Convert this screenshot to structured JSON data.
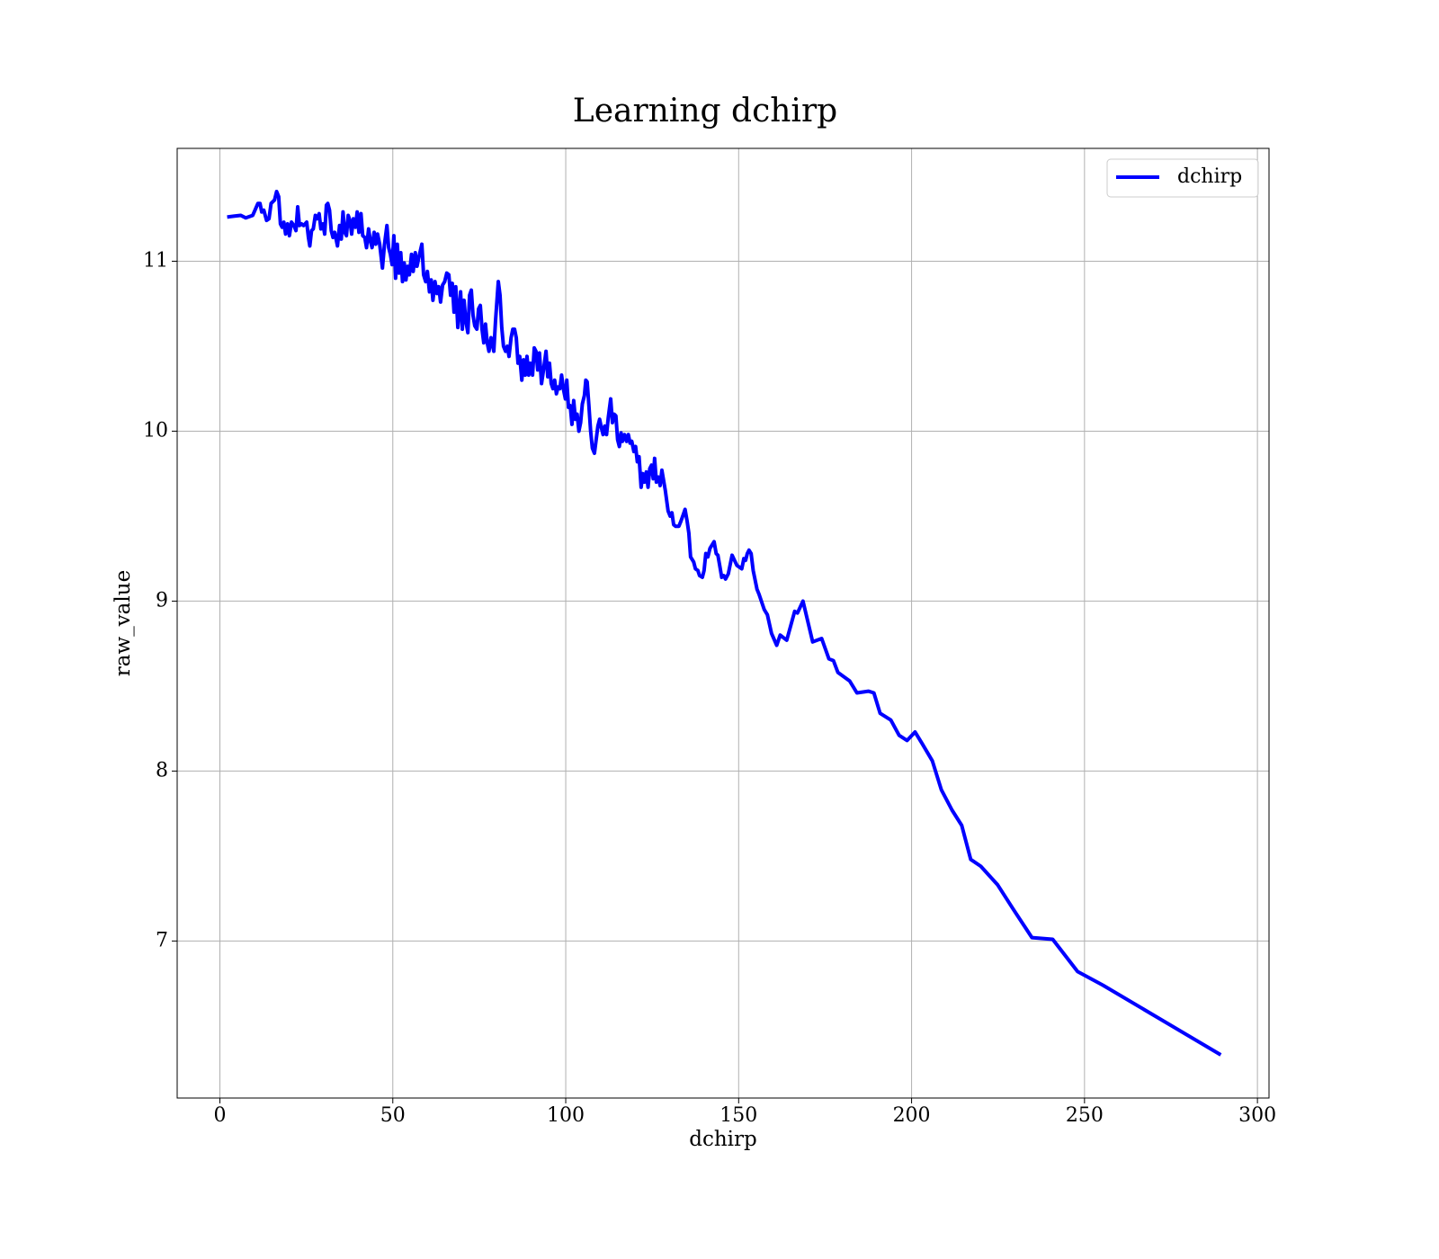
{
  "chart_data": {
    "type": "line",
    "title": "Learning dchirp",
    "xlabel": "dchirp",
    "ylabel": "raw_value",
    "x": [
      2.1,
      4,
      6,
      7.5,
      9.5,
      11,
      11.6,
      12.1,
      12.7,
      13.5,
      14.2,
      14.8,
      15.3,
      15.8,
      16.4,
      17,
      17.5,
      18,
      18.5,
      19,
      19.6,
      20.1,
      20.7,
      21.4,
      22,
      22.5,
      23,
      23.6,
      24.2,
      25.1,
      25.6,
      26,
      26.5,
      27,
      27.6,
      28.1,
      28.7,
      29.2,
      29.8,
      30.3,
      30.8,
      31.2,
      31.7,
      32.2,
      32.7,
      33.2,
      34,
      34.6,
      35.1,
      35.6,
      36.1,
      36.6,
      37.1,
      37.6,
      38.1,
      38.6,
      39.2,
      39.7,
      40.2,
      40.8,
      41.3,
      41.9,
      42.4,
      43,
      43.5,
      44,
      44.6,
      45.1,
      45.6,
      46.2,
      47,
      47.6,
      48.3,
      48.8,
      49.3,
      49.8,
      50.3,
      50.8,
      51.3,
      51.8,
      52.3,
      52.8,
      53.3,
      53.8,
      54.3,
      54.8,
      55.4,
      55.9,
      56.5,
      57,
      57.5,
      58.4,
      58.9,
      59.5,
      60,
      60.6,
      61.1,
      61.6,
      62.2,
      62.8,
      63.3,
      63.8,
      64.4,
      65,
      65.6,
      66.2,
      66.7,
      67.2,
      67.7,
      68.2,
      68.8,
      69.6,
      70.1,
      70.6,
      71.1,
      71.7,
      72.2,
      72.7,
      73.2,
      73.7,
      74.3,
      74.8,
      75.3,
      75.8,
      76.3,
      76.8,
      77.3,
      77.8,
      78.4,
      79.2,
      79.7,
      80.5,
      81,
      81.5,
      82,
      82.6,
      83.1,
      83.6,
      84.2,
      84.7,
      85.2,
      85.7,
      86.2,
      86.7,
      87.3,
      87.8,
      88.3,
      88.8,
      89.3,
      89.8,
      90.4,
      90.9,
      91.4,
      91.9,
      92.4,
      93,
      93.5,
      94.3,
      94.8,
      95.3,
      95.8,
      96.3,
      96.8,
      97.3,
      97.8,
      98.3,
      98.8,
      99.4,
      99.9,
      100.3,
      100.8,
      101.3,
      101.8,
      102.3,
      102.8,
      103.3,
      103.8,
      104.3,
      104.8,
      105.4,
      105.8,
      106.2,
      106.7,
      107.2,
      107.7,
      108.3,
      108.8,
      109.3,
      109.8,
      110.3,
      110.8,
      111.3,
      111.8,
      112.3,
      113,
      113.5,
      114,
      114.5,
      115,
      115.5,
      116,
      116.4,
      117,
      117.6,
      118.1,
      118.6,
      119.1,
      119.7,
      120.2,
      120.7,
      121.2,
      121.8,
      122.3,
      122.8,
      123.3,
      123.8,
      124.3,
      124.8,
      125.3,
      125.7,
      126.2,
      126.8,
      127.3,
      127.8,
      128.3,
      128.8,
      129.6,
      130.2,
      130.7,
      131.2,
      131.8,
      132.7,
      133.3,
      134,
      134.5,
      135.1,
      135.6,
      136.1,
      137,
      137.5,
      138.2,
      138.7,
      139.5,
      140,
      140.5,
      141.1,
      141.7,
      142.9,
      143.5,
      144,
      144.6,
      145.1,
      145.7,
      146.2,
      147,
      147.6,
      148.1,
      148.8,
      149.5,
      150.9,
      151.5,
      152,
      152.5,
      153,
      153.6,
      154.2,
      155.3,
      155.9,
      157.4,
      158.3,
      159.5,
      161,
      162,
      163.9,
      166.2,
      167,
      168.6,
      171.4,
      174,
      176.1,
      177.4,
      178.7,
      182.1,
      184.2,
      187.5,
      189.1,
      190.9,
      194,
      196.4,
      198.7,
      201,
      203.1,
      206,
      208.6,
      211.7,
      214.5,
      217.1,
      220,
      224.9,
      229.3,
      234.8,
      240.8,
      248,
      255.3,
      289.4
    ],
    "series": [
      {
        "name": "dchirp",
        "color": "#0000ff",
        "values": [
          11.26,
          11.265,
          11.27,
          11.255,
          11.27,
          11.34,
          11.34,
          11.29,
          11.3,
          11.24,
          11.25,
          11.34,
          11.35,
          11.36,
          11.41,
          11.38,
          11.22,
          11.2,
          11.23,
          11.16,
          11.22,
          11.15,
          11.23,
          11.21,
          11.18,
          11.32,
          11.21,
          11.22,
          11.21,
          11.23,
          11.14,
          11.09,
          11.18,
          11.19,
          11.27,
          11.25,
          11.28,
          11.19,
          11.22,
          11.16,
          11.33,
          11.34,
          11.3,
          11.18,
          11.14,
          11.17,
          11.09,
          11.21,
          11.13,
          11.29,
          11.17,
          11.15,
          11.27,
          11.24,
          11.16,
          11.25,
          11.2,
          11.29,
          11.17,
          11.28,
          11.15,
          11.14,
          11.08,
          11.19,
          11.12,
          11.08,
          11.17,
          11.1,
          11.16,
          11.1,
          10.96,
          11.1,
          11.21,
          11.08,
          11.04,
          10.98,
          11.15,
          10.9,
          11.1,
          10.93,
          11.05,
          10.88,
          10.99,
          10.89,
          10.97,
          10.92,
          11.04,
          10.94,
          11.05,
          10.97,
          11.02,
          11.1,
          10.92,
          10.88,
          10.94,
          10.82,
          10.89,
          10.77,
          10.88,
          10.81,
          10.85,
          10.76,
          10.86,
          10.88,
          10.93,
          10.92,
          10.8,
          10.87,
          10.7,
          10.85,
          10.61,
          10.82,
          10.6,
          10.77,
          10.65,
          10.58,
          10.8,
          10.83,
          10.68,
          10.62,
          10.6,
          10.72,
          10.74,
          10.6,
          10.52,
          10.63,
          10.52,
          10.47,
          10.55,
          10.47,
          10.65,
          10.88,
          10.8,
          10.61,
          10.5,
          10.47,
          10.5,
          10.44,
          10.55,
          10.6,
          10.6,
          10.55,
          10.4,
          10.44,
          10.3,
          10.42,
          10.33,
          10.44,
          10.33,
          10.4,
          10.33,
          10.49,
          10.47,
          10.36,
          10.46,
          10.28,
          10.35,
          10.47,
          10.32,
          10.4,
          10.28,
          10.25,
          10.3,
          10.22,
          10.26,
          10.25,
          10.33,
          10.24,
          10.19,
          10.3,
          10.14,
          10.15,
          10.04,
          10.18,
          10.07,
          10.1,
          10.0,
          10.05,
          10.16,
          10.21,
          10.3,
          10.29,
          10.15,
          10.0,
          9.9,
          9.87,
          9.95,
          10.03,
          10.07,
          10.02,
          9.98,
          10.03,
          9.98,
          10.08,
          10.19,
          10.05,
          10.1,
          10.09,
          9.95,
          9.91,
          9.99,
          9.94,
          9.98,
          9.94,
          9.98,
          9.93,
          9.94,
          9.88,
          9.91,
          9.82,
          9.85,
          9.67,
          9.75,
          9.7,
          9.76,
          9.67,
          9.78,
          9.8,
          9.72,
          9.84,
          9.7,
          9.73,
          9.68,
          9.77,
          9.71,
          9.65,
          9.53,
          9.5,
          9.52,
          9.45,
          9.44,
          9.44,
          9.47,
          9.51,
          9.54,
          9.47,
          9.4,
          9.26,
          9.23,
          9.19,
          9.18,
          9.15,
          9.14,
          9.18,
          9.28,
          9.26,
          9.31,
          9.35,
          9.28,
          9.27,
          9.2,
          9.14,
          9.15,
          9.13,
          9.16,
          9.22,
          9.27,
          9.24,
          9.21,
          9.19,
          9.25,
          9.24,
          9.28,
          9.3,
          9.28,
          9.18,
          9.07,
          9.04,
          8.95,
          8.92,
          8.81,
          8.74,
          8.8,
          8.77,
          8.94,
          8.93,
          9.0,
          8.76,
          8.78,
          8.66,
          8.65,
          8.58,
          8.53,
          8.46,
          8.47,
          8.46,
          8.34,
          8.3,
          8.21,
          8.18,
          8.23,
          8.16,
          8.06,
          7.89,
          7.77,
          7.68,
          7.48,
          7.44,
          7.33,
          7.19,
          7.02,
          7.01,
          6.82,
          6.74,
          6.33
        ]
      }
    ],
    "xlim": [
      -12.35,
      303.35
    ],
    "ylim": [
      6.076,
      11.664
    ],
    "xticks": [
      0,
      50,
      100,
      150,
      200,
      250,
      300
    ],
    "yticks": [
      7,
      8,
      9,
      10,
      11
    ],
    "grid": true,
    "legend": "upper right"
  }
}
